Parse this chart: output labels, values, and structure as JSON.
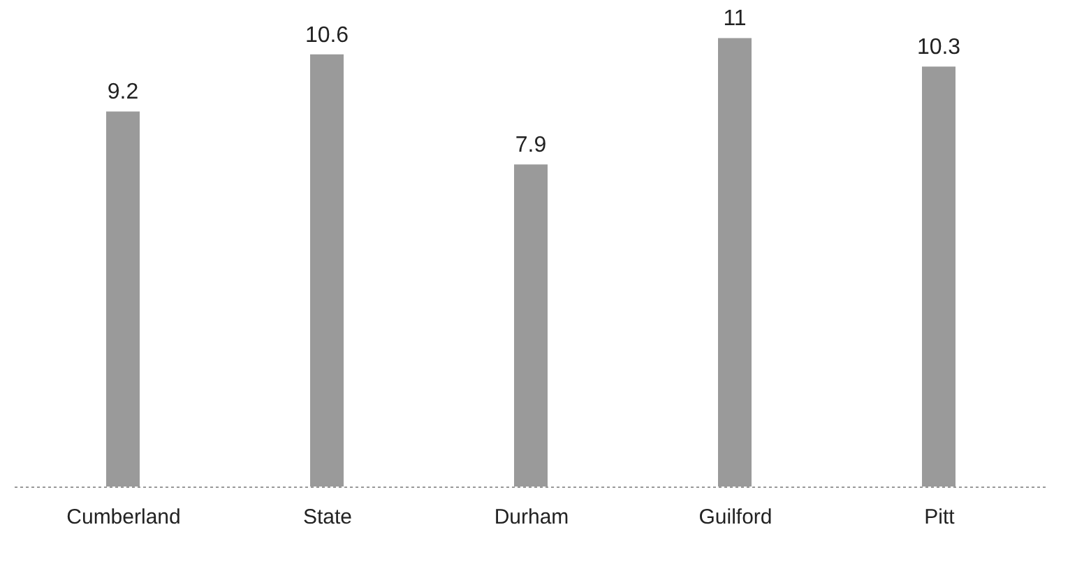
{
  "chart_data": {
    "type": "bar",
    "categories": [
      "Cumberland",
      "State",
      "Durham",
      "Guilford",
      "Pitt"
    ],
    "values": [
      9.2,
      10.6,
      7.9,
      11,
      10.3
    ],
    "color": "#9a9a9a",
    "data_labels": true,
    "grid": false
  }
}
